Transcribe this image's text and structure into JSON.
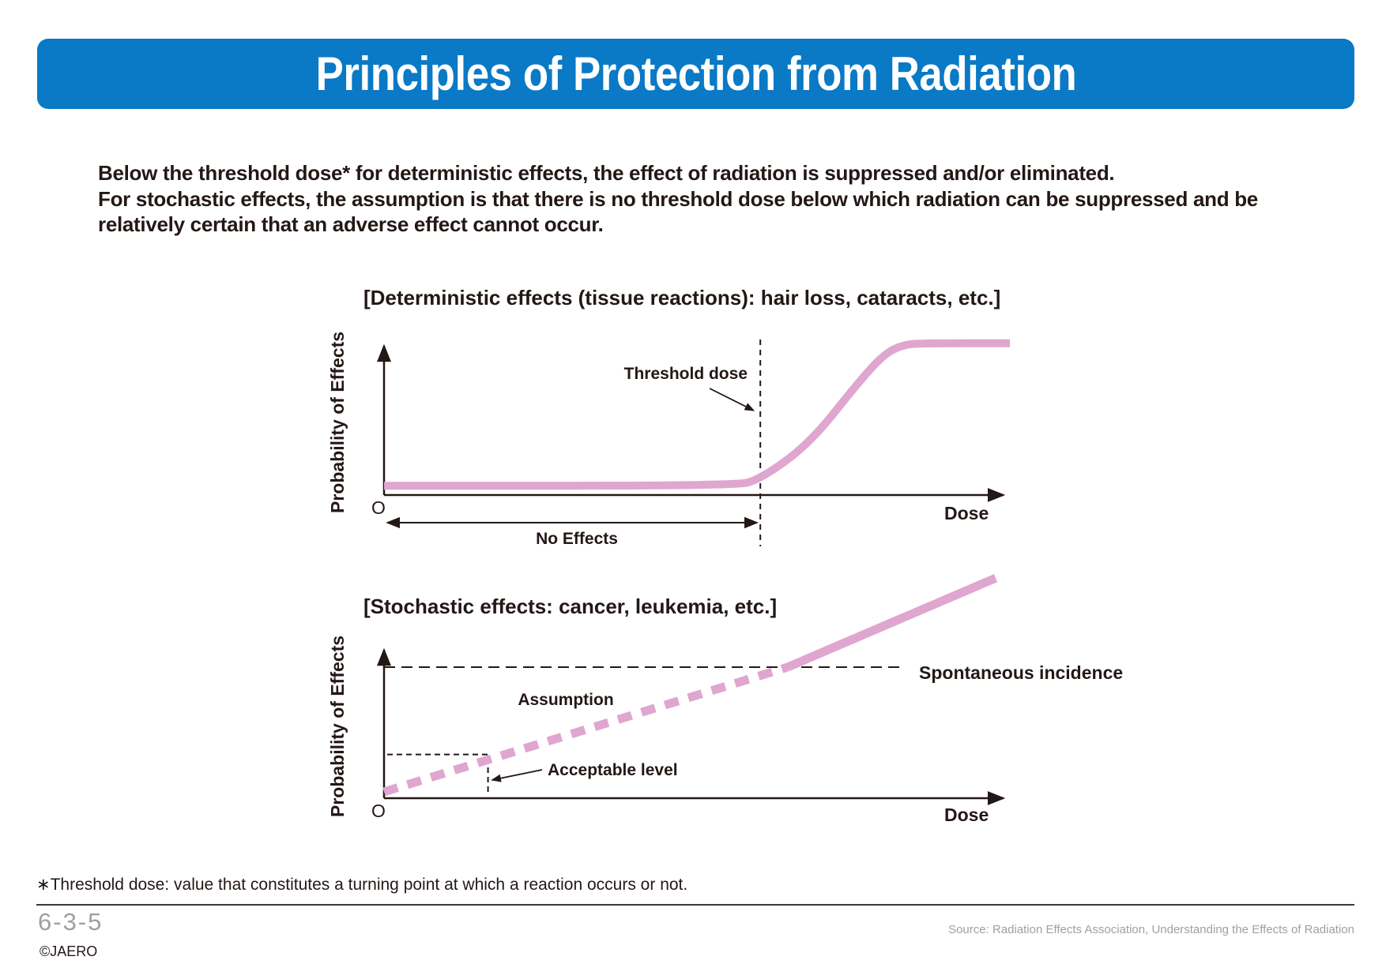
{
  "header": {
    "title": "Principles of Protection from Radiation"
  },
  "intro": {
    "line1": "Below the threshold dose* for deterministic effects, the effect of radiation is suppressed and/or eliminated.",
    "line2": "For stochastic effects, the assumption is that there is no threshold dose below which radiation can be suppressed and be relatively certain that an adverse effect cannot occur."
  },
  "chart_data": [
    {
      "type": "line",
      "title": "[Deterministic effects (tissue reactions): hair loss, cataracts, etc.]",
      "ylabel": "Probability of Effects",
      "xlabel": "Dose",
      "origin_label": "O",
      "annotations": {
        "threshold": "Threshold dose",
        "no_effects": "No Effects"
      },
      "threshold_dose": 0.6,
      "series": [
        {
          "values": [
            [
              0,
              0.02
            ],
            [
              0.56,
              0.02
            ],
            [
              0.6,
              0.06
            ],
            [
              0.68,
              0.3
            ],
            [
              0.76,
              0.72
            ],
            [
              0.8,
              0.9
            ],
            [
              0.83,
              0.96
            ],
            [
              0.86,
              0.97
            ],
            [
              1.0,
              0.97
            ]
          ],
          "color": "#dfa6cf"
        }
      ],
      "xlim": [
        0,
        1.0
      ],
      "ylim": [
        0,
        1.0
      ]
    },
    {
      "type": "line",
      "title": "[Stochastic effects: cancer, leukemia, etc.]",
      "ylabel": "Probability of Effects",
      "xlabel": "Dose",
      "origin_label": "O",
      "annotations": {
        "spontaneous": "Spontaneous incidence",
        "assumption": "Assumption",
        "acceptable": "Acceptable level"
      },
      "spontaneous_level": 0.7,
      "acceptable_dose": 0.17,
      "acceptable_level": 0.21,
      "series": [
        {
          "segment": "assumed",
          "style": "dashed",
          "values": [
            [
              0,
              0
            ],
            [
              0.66,
              0.7
            ]
          ],
          "color": "#dfa6cf"
        },
        {
          "segment": "observed",
          "style": "solid",
          "values": [
            [
              0.66,
              0.7
            ],
            [
              1.0,
              1.2
            ]
          ],
          "color": "#dfa6cf"
        }
      ],
      "xlim": [
        0,
        1.0
      ],
      "ylim": [
        0,
        1.0
      ]
    }
  ],
  "footer": {
    "footnote": "∗Threshold dose: value that constitutes a turning point at which a reaction occurs or not.",
    "page_number": "6-3-5",
    "copyright": "©JAERO",
    "source": "Source: Radiation Effects Association, Understanding the Effects of Radiation"
  },
  "colors": {
    "title_bar": "#0a79c6",
    "curve": "#dfa6cf",
    "ink": "#231815"
  }
}
